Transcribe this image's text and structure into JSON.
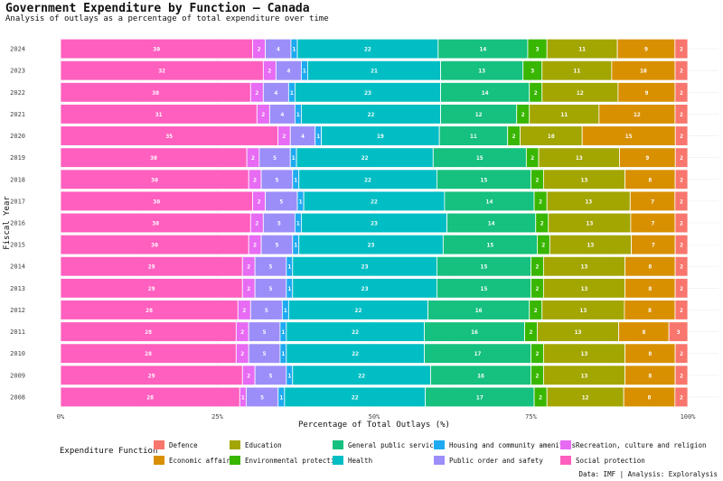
{
  "title": "Government Expenditure by Function — Canada",
  "subtitle": "Analysis of outlays as a percentage of total expenditure over time",
  "caption": "Data: IMF | Analysis: Exploralysis",
  "legend_title": "Expenditure Function",
  "colors": {
    "Social protection": "#ff5fbf",
    "Recreation, culture and religion": "#e76bf3",
    "Public order and safety": "#9b8ef9",
    "Housing and community amenities": "#1eaaf0",
    "Health": "#00bec4",
    "General public services": "#16c07e",
    "Environmental protection": "#39b600",
    "Education": "#a3a500",
    "Economic affairs": "#d89000",
    "Defence": "#f8766d"
  },
  "legend_order": [
    "Defence",
    "Education",
    "General public services",
    "Housing and community amenities",
    "Recreation, culture and religion",
    "Economic affairs",
    "Environmental protection",
    "Health",
    "Public order and safety",
    "Social protection"
  ],
  "chart_data": {
    "type": "bar",
    "orientation": "horizontal",
    "stacked": "percent",
    "xlabel": "Percentage of Total Outlays (%)",
    "ylabel": "Fiscal Year",
    "xlim": [
      0,
      100
    ],
    "x_ticks": [
      "0%",
      "25%",
      "50%",
      "75%",
      "100%"
    ],
    "grid": true,
    "legend_position": "bottom",
    "categories": [
      "2024",
      "2023",
      "2022",
      "2021",
      "2020",
      "2019",
      "2018",
      "2017",
      "2016",
      "2015",
      "2014",
      "2013",
      "2012",
      "2011",
      "2010",
      "2009",
      "2008"
    ],
    "series": [
      {
        "name": "Social protection",
        "values": [
          30,
          32,
          30,
          31,
          35,
          30,
          30,
          30,
          30,
          30,
          29,
          29,
          28,
          28,
          28,
          29,
          28
        ]
      },
      {
        "name": "Recreation, culture and religion",
        "values": [
          2,
          2,
          2,
          2,
          2,
          2,
          2,
          2,
          2,
          2,
          2,
          2,
          2,
          2,
          2,
          2,
          1
        ]
      },
      {
        "name": "Public order and safety",
        "values": [
          4,
          4,
          4,
          4,
          4,
          5,
          5,
          5,
          5,
          5,
          5,
          5,
          5,
          5,
          5,
          5,
          5
        ]
      },
      {
        "name": "Housing and community amenities",
        "values": [
          1,
          1,
          1,
          1,
          1,
          1,
          1,
          1,
          1,
          1,
          1,
          1,
          1,
          1,
          1,
          1,
          1
        ]
      },
      {
        "name": "Health",
        "values": [
          22,
          21,
          23,
          22,
          19,
          22,
          22,
          22,
          23,
          23,
          23,
          23,
          22,
          22,
          22,
          22,
          22
        ]
      },
      {
        "name": "General public services",
        "values": [
          14,
          13,
          14,
          12,
          11,
          15,
          15,
          14,
          14,
          15,
          15,
          15,
          16,
          16,
          17,
          16,
          17
        ]
      },
      {
        "name": "Environmental protection",
        "values": [
          3,
          3,
          2,
          2,
          2,
          2,
          2,
          2,
          2,
          2,
          2,
          2,
          2,
          2,
          2,
          2,
          2
        ]
      },
      {
        "name": "Education",
        "values": [
          11,
          11,
          12,
          11,
          10,
          13,
          13,
          13,
          13,
          13,
          13,
          13,
          13,
          13,
          13,
          13,
          12
        ]
      },
      {
        "name": "Economic affairs",
        "values": [
          9,
          10,
          9,
          12,
          15,
          9,
          8,
          7,
          7,
          7,
          8,
          8,
          8,
          8,
          8,
          8,
          8
        ]
      },
      {
        "name": "Defence",
        "values": [
          2,
          2,
          2,
          2,
          2,
          2,
          2,
          2,
          2,
          2,
          2,
          2,
          2,
          3,
          2,
          2,
          2
        ]
      }
    ]
  }
}
